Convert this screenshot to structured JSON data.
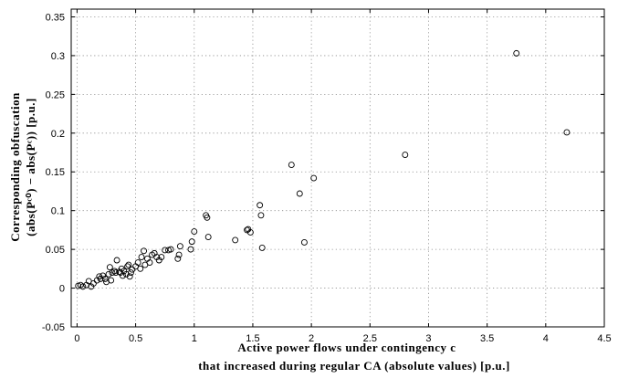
{
  "chart_data": {
    "type": "scatter",
    "xlabel_lines": [
      "Active power flows under contingency c",
      "that increased during regular CA (absolute values) [p.u.]"
    ],
    "ylabel_lines": [
      "Corresponding obfuscation",
      "(abs(Pᶜ⁰) − abs(Pᶜ)) [p.u.]"
    ],
    "xlim": [
      -0.05,
      4.5
    ],
    "ylim": [
      -0.05,
      0.36
    ],
    "x_ticks": [
      0,
      0.5,
      1,
      1.5,
      2,
      2.5,
      3,
      3.5,
      4,
      4.5
    ],
    "x_tick_labels": [
      "0",
      "0.5",
      "1",
      "1.5",
      "2",
      "2.5",
      "3",
      "3.5",
      "4",
      "4.5"
    ],
    "y_ticks": [
      -0.05,
      0,
      0.05,
      0.1,
      0.15,
      0.2,
      0.25,
      0.3,
      0.35
    ],
    "y_tick_labels": [
      "-0.05",
      "0",
      "0.05",
      "0.1",
      "0.15",
      "0.2",
      "0.25",
      "0.3",
      "0.35"
    ],
    "grid": true,
    "marker": "open-circle",
    "points": [
      [
        0.01,
        0.003
      ],
      [
        0.03,
        0.004
      ],
      [
        0.05,
        0.002
      ],
      [
        0.08,
        0.004
      ],
      [
        0.1,
        0.009
      ],
      [
        0.12,
        0.002
      ],
      [
        0.14,
        0.006
      ],
      [
        0.17,
        0.01
      ],
      [
        0.19,
        0.015
      ],
      [
        0.2,
        0.012
      ],
      [
        0.22,
        0.016
      ],
      [
        0.24,
        0.012
      ],
      [
        0.25,
        0.008
      ],
      [
        0.27,
        0.018
      ],
      [
        0.28,
        0.027
      ],
      [
        0.29,
        0.01
      ],
      [
        0.3,
        0.02
      ],
      [
        0.32,
        0.022
      ],
      [
        0.33,
        0.02
      ],
      [
        0.34,
        0.036
      ],
      [
        0.36,
        0.021
      ],
      [
        0.37,
        0.02
      ],
      [
        0.38,
        0.025
      ],
      [
        0.39,
        0.016
      ],
      [
        0.4,
        0.022
      ],
      [
        0.42,
        0.018
      ],
      [
        0.43,
        0.028
      ],
      [
        0.44,
        0.03
      ],
      [
        0.45,
        0.015
      ],
      [
        0.46,
        0.02
      ],
      [
        0.47,
        0.024
      ],
      [
        0.5,
        0.028
      ],
      [
        0.52,
        0.033
      ],
      [
        0.54,
        0.025
      ],
      [
        0.55,
        0.04
      ],
      [
        0.57,
        0.048
      ],
      [
        0.58,
        0.03
      ],
      [
        0.6,
        0.038
      ],
      [
        0.62,
        0.033
      ],
      [
        0.64,
        0.043
      ],
      [
        0.66,
        0.045
      ],
      [
        0.68,
        0.04
      ],
      [
        0.7,
        0.036
      ],
      [
        0.72,
        0.04
      ],
      [
        0.75,
        0.049
      ],
      [
        0.78,
        0.049
      ],
      [
        0.8,
        0.05
      ],
      [
        0.86,
        0.038
      ],
      [
        0.87,
        0.043
      ],
      [
        0.88,
        0.054
      ],
      [
        0.97,
        0.05
      ],
      [
        0.98,
        0.06
      ],
      [
        1.0,
        0.073
      ],
      [
        1.1,
        0.094
      ],
      [
        1.11,
        0.091
      ],
      [
        1.12,
        0.066
      ],
      [
        1.35,
        0.062
      ],
      [
        1.45,
        0.075
      ],
      [
        1.46,
        0.076
      ],
      [
        1.48,
        0.072
      ],
      [
        1.56,
        0.107
      ],
      [
        1.57,
        0.094
      ],
      [
        1.58,
        0.052
      ],
      [
        1.83,
        0.159
      ],
      [
        1.9,
        0.122
      ],
      [
        1.94,
        0.059
      ],
      [
        2.02,
        0.142
      ],
      [
        2.8,
        0.172
      ],
      [
        3.75,
        0.303
      ],
      [
        4.18,
        0.201
      ]
    ]
  }
}
